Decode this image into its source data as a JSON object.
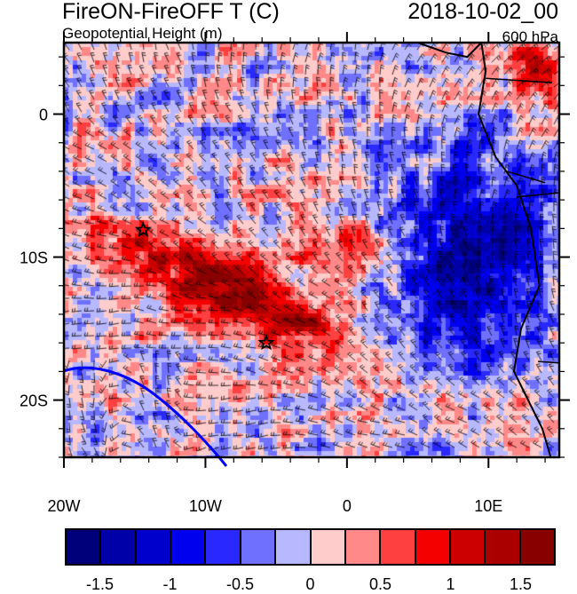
{
  "title": {
    "left": "FireON-FireOFF T (C)",
    "right": "2018-10-02_00"
  },
  "subtitle": {
    "left": "Geopotential Height (m)",
    "right": "600 hPa"
  },
  "map": {
    "lon_range": [
      -20,
      15
    ],
    "lat_range": [
      -24,
      5
    ],
    "x_ticks": [
      {
        "lon": -20,
        "label": "20W"
      },
      {
        "lon": -10,
        "label": "10W"
      },
      {
        "lon": 0,
        "label": "0"
      },
      {
        "lon": 10,
        "label": "10E"
      }
    ],
    "y_ticks": [
      {
        "lat": 0,
        "label": "0"
      },
      {
        "lat": -10,
        "label": "10S"
      },
      {
        "lat": -20,
        "label": "20S"
      }
    ],
    "markers": [
      {
        "type": "star",
        "lon": -14.4,
        "lat": -8.1
      },
      {
        "type": "star",
        "lon": -5.7,
        "lat": -16.0
      }
    ]
  },
  "colorbar": {
    "levels": [
      -1.5,
      -1.25,
      -1,
      -0.75,
      -0.5,
      -0.25,
      0,
      0.25,
      0.5,
      0.75,
      1,
      1.25,
      1.5
    ],
    "colors": [
      "#00007a",
      "#0000a8",
      "#0000cc",
      "#0000ee",
      "#2828ff",
      "#7070ff",
      "#b8b8ff",
      "#ffcccc",
      "#ff8888",
      "#ff4040",
      "#f50000",
      "#cc0000",
      "#aa0000",
      "#880000"
    ],
    "labels": [
      "-1.5",
      "-1",
      "-0.5",
      "0",
      "0.5",
      "1",
      "1.5"
    ],
    "contour_color": "#0000ff"
  }
}
